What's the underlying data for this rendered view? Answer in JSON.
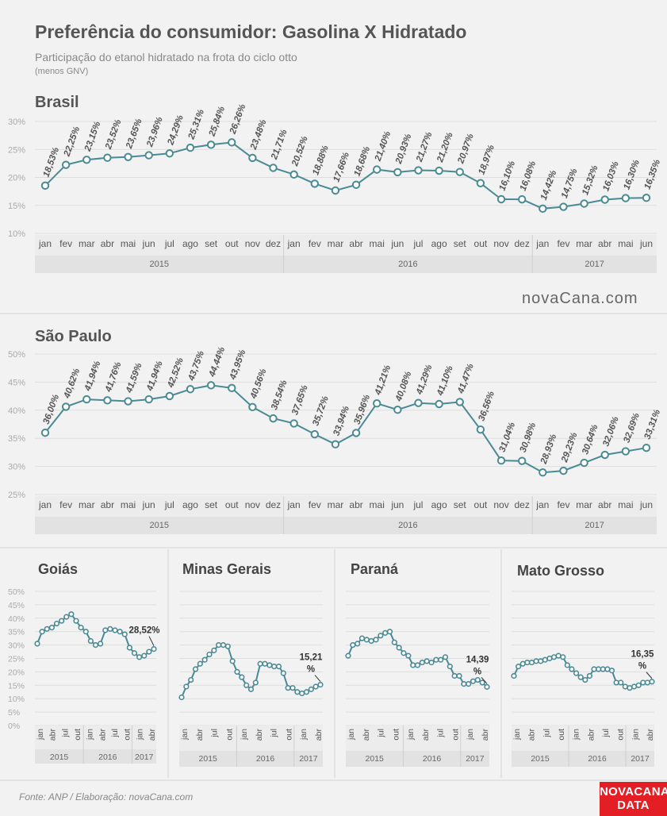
{
  "header": {
    "title": "Preferência do consumidor: Gasolina X Hidratado",
    "subtitle": "Participação do etanol hidratado na frota do ciclo otto",
    "note": "(menos GNV)"
  },
  "footer": {
    "source": "Fonte: ANP  / Elaboração: novaCana.com",
    "watermark": "novaCana.com",
    "logo_line1": "NOVACANA",
    "logo_line2": "DATA"
  },
  "colors": {
    "line": "#4a8a95",
    "grid": "#dddddd",
    "axis_band": "#e2e2e2",
    "logo": "#e31e24"
  },
  "chart_data": [
    {
      "type": "line",
      "title": "Brasil",
      "months": [
        "jan",
        "fev",
        "mar",
        "abr",
        "mai",
        "jun",
        "jul",
        "ago",
        "set",
        "out",
        "nov",
        "dez",
        "jan",
        "fev",
        "mar",
        "abr",
        "mai",
        "jun",
        "jul",
        "ago",
        "set",
        "out",
        "nov",
        "dez",
        "jan",
        "fev",
        "mar",
        "abr",
        "mai",
        "jun"
      ],
      "years": [
        {
          "label": "2015",
          "count": 12
        },
        {
          "label": "2016",
          "count": 12
        },
        {
          "label": "2017",
          "count": 6
        }
      ],
      "values": [
        18.53,
        22.25,
        23.15,
        23.52,
        23.65,
        23.96,
        24.29,
        25.31,
        25.84,
        26.26,
        23.48,
        21.71,
        20.52,
        18.88,
        17.66,
        18.68,
        21.4,
        20.93,
        21.27,
        21.2,
        20.97,
        18.97,
        16.1,
        16.08,
        14.42,
        14.75,
        15.32,
        16.03,
        16.3,
        16.35
      ],
      "labels": [
        "18,53%",
        "22,25%",
        "23,15%",
        "23,52%",
        "23,65%",
        "23,96%",
        "24,29%",
        "25,31%",
        "25,84%",
        "26,26%",
        "23,48%",
        "21,71%",
        "20,52%",
        "18,88%",
        "17,66%",
        "18,68%",
        "21,40%",
        "20,93%",
        "21,27%",
        "21,20%",
        "20,97%",
        "18,97%",
        "16,10%",
        "16,08%",
        "14,42%",
        "14,75%",
        "15,32%",
        "16,03%",
        "16,30%",
        "16,35%"
      ],
      "ylim": [
        10,
        30
      ],
      "yticks": [
        {
          "v": 10,
          "t": "10%"
        },
        {
          "v": 15,
          "t": "15%"
        },
        {
          "v": 20,
          "t": "20%"
        },
        {
          "v": 25,
          "t": "25%"
        },
        {
          "v": 30,
          "t": "30%"
        }
      ]
    },
    {
      "type": "line",
      "title": "São Paulo",
      "months": [
        "jan",
        "fev",
        "mar",
        "abr",
        "mai",
        "jun",
        "jul",
        "ago",
        "set",
        "out",
        "nov",
        "dez",
        "jan",
        "fev",
        "mar",
        "abr",
        "mai",
        "jun",
        "jul",
        "ago",
        "set",
        "out",
        "nov",
        "dez",
        "jan",
        "fev",
        "mar",
        "abr",
        "mai",
        "jun"
      ],
      "years": [
        {
          "label": "2015",
          "count": 12
        },
        {
          "label": "2016",
          "count": 12
        },
        {
          "label": "2017",
          "count": 6
        }
      ],
      "values": [
        36.0,
        40.62,
        41.94,
        41.76,
        41.59,
        41.94,
        42.52,
        43.75,
        44.44,
        43.95,
        40.56,
        38.54,
        37.65,
        35.72,
        33.94,
        35.96,
        41.21,
        40.08,
        41.29,
        41.1,
        41.47,
        36.56,
        31.04,
        30.98,
        28.93,
        29.23,
        30.64,
        32.06,
        32.69,
        33.31
      ],
      "labels": [
        "36,00%",
        "40,62%",
        "41,94%",
        "41,76%",
        "41,59%",
        "41,94%",
        "42,52%",
        "43,75%",
        "44,44%",
        "43,95%",
        "40,56%",
        "38,54%",
        "37,65%",
        "35,72%",
        "33,94%",
        "35,96%",
        "41,21%",
        "40,08%",
        "41,29%",
        "41,10%",
        "41,47%",
        "36,56%",
        "31,04%",
        "30,98%",
        "28,93%",
        "29,23%",
        "30,64%",
        "32,06%",
        "32,69%",
        "33,31%"
      ],
      "ylim": [
        25,
        50
      ],
      "yticks": [
        {
          "v": 25,
          "t": "25%"
        },
        {
          "v": 30,
          "t": "30%"
        },
        {
          "v": 35,
          "t": "35%"
        },
        {
          "v": 40,
          "t": "40%"
        },
        {
          "v": 45,
          "t": "45%"
        },
        {
          "v": 50,
          "t": "50%"
        }
      ]
    },
    {
      "type": "line",
      "title": "Goiás",
      "months": [
        "jan",
        "abr",
        "jul",
        "out",
        "jan",
        "abr",
        "jul",
        "out",
        "jan",
        "abr"
      ],
      "years": [
        {
          "label": "2015",
          "count": 12
        },
        {
          "label": "2016",
          "count": 12
        },
        {
          "label": "2017",
          "count": 6
        }
      ],
      "values": [
        30.5,
        35,
        36,
        36.5,
        38,
        39,
        40.5,
        41.5,
        39,
        36.5,
        35,
        31.5,
        30,
        30.5,
        35.5,
        36,
        35.5,
        35,
        34,
        29,
        27,
        25.5,
        26,
        27.5,
        28.52
      ],
      "last_label": "28,52%",
      "ylim": [
        0,
        50
      ],
      "yticks": [
        {
          "v": 0,
          "t": "0%"
        },
        {
          "v": 5,
          "t": "5%"
        },
        {
          "v": 10,
          "t": "10%"
        },
        {
          "v": 15,
          "t": "15%"
        },
        {
          "v": 20,
          "t": "20%"
        },
        {
          "v": 25,
          "t": "25%"
        },
        {
          "v": 30,
          "t": "30%"
        },
        {
          "v": 35,
          "t": "35%"
        },
        {
          "v": 40,
          "t": "40%"
        },
        {
          "v": 45,
          "t": "45%"
        },
        {
          "v": 50,
          "t": "50%"
        }
      ]
    },
    {
      "type": "line",
      "title": "Minas Gerais",
      "months": [
        "jan",
        "abr",
        "jul",
        "out",
        "jan",
        "abr",
        "jul",
        "out",
        "jan",
        "abr"
      ],
      "years": [
        {
          "label": "2015",
          "count": 12
        },
        {
          "label": "2016",
          "count": 12
        },
        {
          "label": "2017",
          "count": 6
        }
      ],
      "values": [
        10.5,
        14.5,
        17,
        21,
        23,
        24.5,
        26.5,
        28,
        30,
        30,
        29.5,
        24,
        20,
        18,
        15,
        13.5,
        16,
        23,
        23,
        22.5,
        22,
        22,
        19.5,
        14,
        14,
        12.5,
        12,
        12.5,
        13.5,
        14.5,
        15.21
      ],
      "last_label_line1": "15,21",
      "last_label_line2": "%",
      "ylim": [
        0,
        50
      ]
    },
    {
      "type": "line",
      "title": "Paraná",
      "months": [
        "jan",
        "abr",
        "jul",
        "out",
        "jan",
        "abr",
        "jul",
        "out",
        "jan",
        "abr"
      ],
      "years": [
        {
          "label": "2015",
          "count": 12
        },
        {
          "label": "2016",
          "count": 12
        },
        {
          "label": "2017",
          "count": 6
        }
      ],
      "values": [
        26,
        30,
        30.5,
        32.5,
        32,
        31.5,
        32,
        33.5,
        34.5,
        35,
        31,
        29,
        27,
        26,
        22.5,
        22.5,
        23.5,
        24,
        23.5,
        24.5,
        24.5,
        25.5,
        22,
        18.5,
        18.5,
        15.5,
        15.5,
        16.5,
        17,
        16,
        14.39
      ],
      "last_label_line1": "14,39",
      "last_label_line2": "%",
      "ylim": [
        0,
        50
      ]
    },
    {
      "type": "line",
      "title": "Mato Grosso",
      "months": [
        "jan",
        "abr",
        "jul",
        "out",
        "jan",
        "abr",
        "jul",
        "out",
        "jan",
        "abr"
      ],
      "years": [
        {
          "label": "2015",
          "count": 12
        },
        {
          "label": "2016",
          "count": 12
        },
        {
          "label": "2017",
          "count": 6
        }
      ],
      "values": [
        18.5,
        22,
        23,
        23.5,
        23.5,
        24,
        24,
        24.5,
        25,
        25.5,
        26,
        25.5,
        22.5,
        21,
        19.5,
        18,
        17,
        18.5,
        21,
        21,
        21,
        21,
        20.5,
        16,
        16,
        14.5,
        14,
        14.5,
        15,
        16,
        16,
        16.35
      ],
      "last_label_line1": "16,35",
      "last_label_line2": "%",
      "ylim": [
        0,
        50
      ]
    }
  ]
}
